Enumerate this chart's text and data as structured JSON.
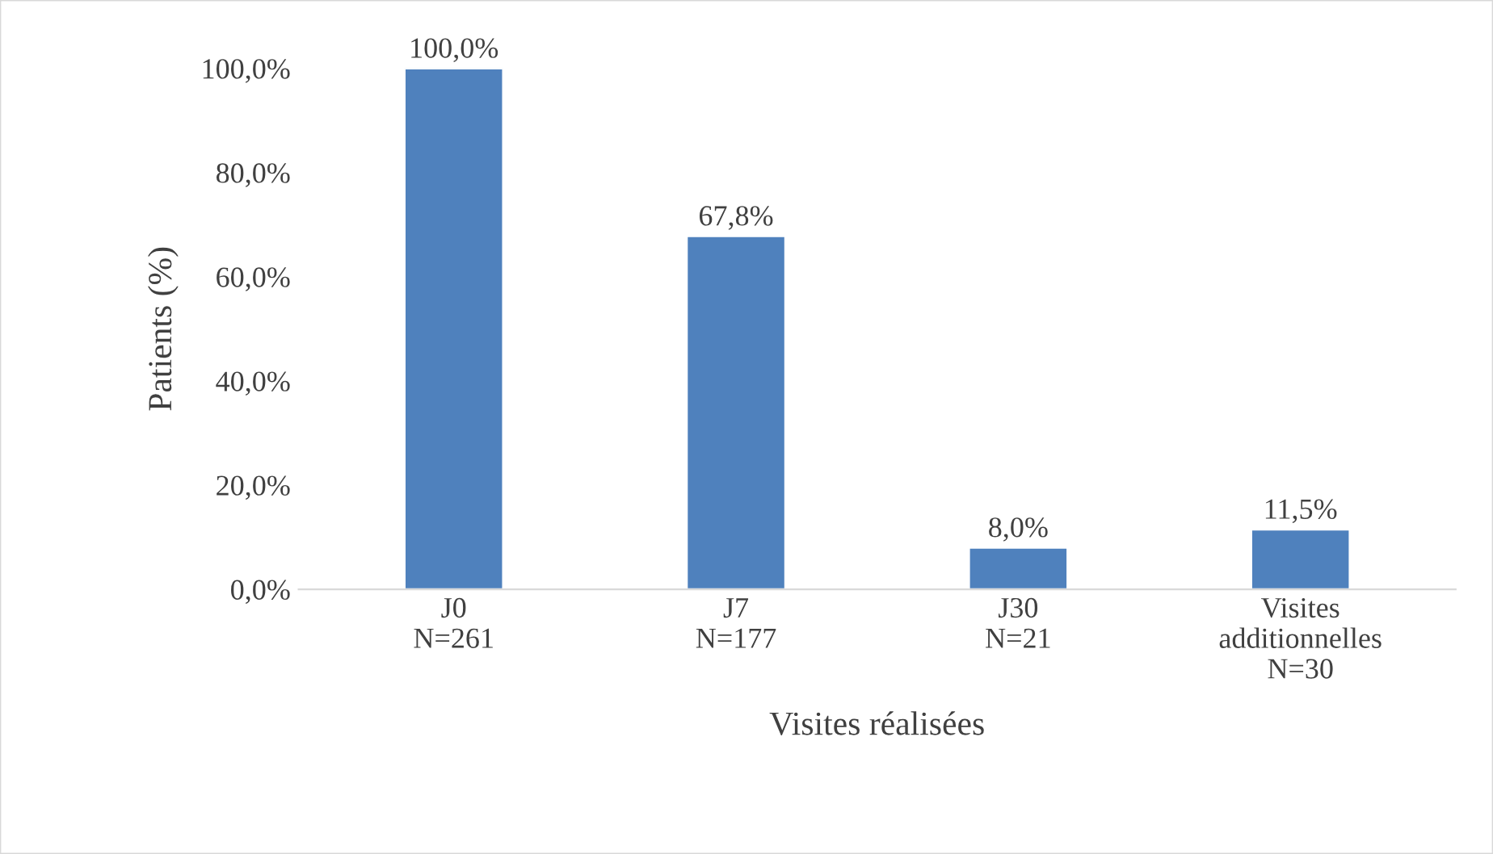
{
  "chart_data": {
    "type": "bar",
    "categories": [
      "J0\nN=261",
      "J7\nN=177",
      "J30\nN=21",
      "Visites\nadditionnelles\nN=30"
    ],
    "values": [
      100.0,
      67.8,
      8.0,
      11.5
    ],
    "value_labels": [
      "100,0%",
      "67,8%",
      "8,0%",
      "11,5%"
    ],
    "color": "#4f81bd",
    "xlabel": "Visites réalisées",
    "ylabel": "Patients (%)",
    "ylim": [
      0,
      100
    ],
    "yticks": [
      {
        "value": 0,
        "label": "0,0%"
      },
      {
        "value": 20,
        "label": "20,0%"
      },
      {
        "value": 40,
        "label": "40,0%"
      },
      {
        "value": 60,
        "label": "60,0%"
      },
      {
        "value": 80,
        "label": "80,0%"
      },
      {
        "value": 100,
        "label": "100,0%"
      }
    ],
    "grid": false,
    "legend": false
  }
}
